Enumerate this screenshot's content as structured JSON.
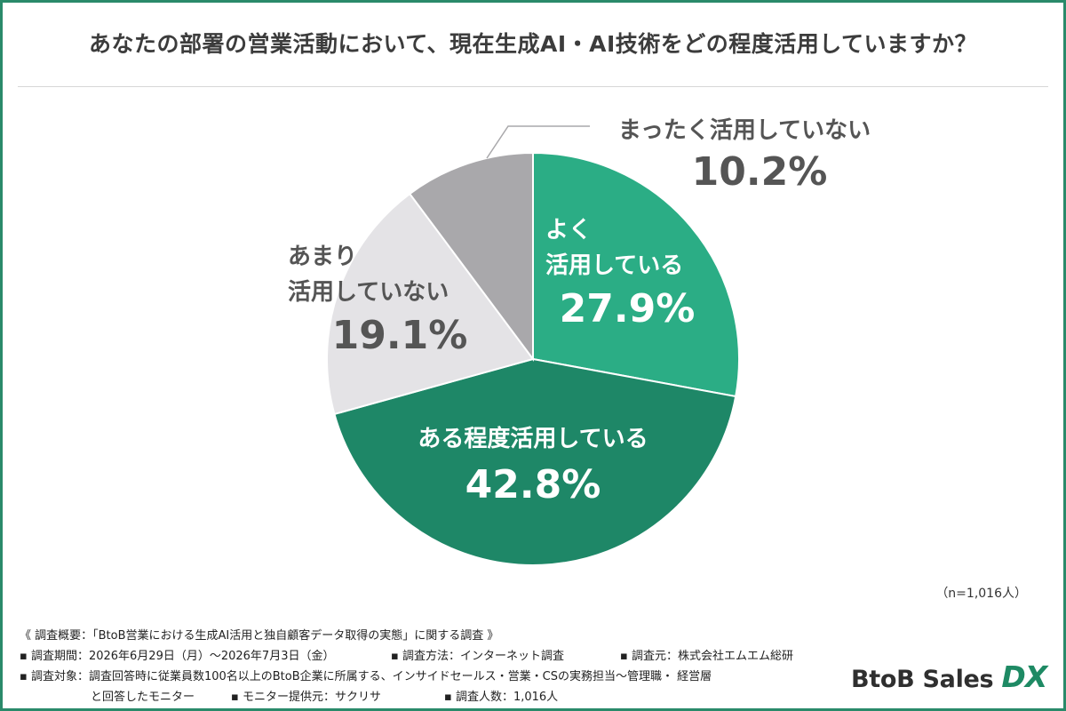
{
  "title": "あなたの部署の営業活動において、現在生成AI・AI技術をどの程度活用していますか？",
  "chart_data": {
    "type": "pie",
    "title": "あなたの部署の営業活動において、現在生成AI・AI技術をどの程度活用していますか？",
    "slices": [
      {
        "label_lines": [
          "よく",
          "活用している"
        ],
        "value": 27.9,
        "value_label": "27.9%",
        "color": "#2bad85",
        "text_color": "#ffffff"
      },
      {
        "label_lines": [
          "ある程度活用している"
        ],
        "value": 42.8,
        "value_label": "42.8%",
        "color": "#1e8767",
        "text_color": "#ffffff"
      },
      {
        "label_lines": [
          "あまり",
          "活用していない"
        ],
        "value": 19.1,
        "value_label": "19.1%",
        "color": "#e4e3e6",
        "text_color": "#555555"
      },
      {
        "label_lines": [
          "まったく活用していない"
        ],
        "value": 10.2,
        "value_label": "10.2%",
        "color": "#a9a8ab",
        "text_color": "#555555"
      }
    ],
    "start": "12 o'clock",
    "direction": "clockwise"
  },
  "sample_note": "（n=1,016人）",
  "survey": {
    "overview": "《 調査概要：「BtoB営業における生成AI活用と独自顧客データ取得の実態」に関する調査 》",
    "period": "▪ 調査期間：2026年6月29日（月）〜2026年7月3日（金）",
    "method": "▪ 調査方法：インターネット調査",
    "source": "▪ 調査元：株式会社エムエム総研",
    "target": "▪ 調査対象：調査回答時に従業員数100名以上のBtoB企業に所属する、インサイドセールス・営業・CSの実務担当〜管理職・ 経営層",
    "target_cont": "と回答したモニター",
    "provider": "▪ モニター提供元：サクリサ",
    "respondents": "▪ 調査人数：1,016人"
  },
  "brand": {
    "main": "BtoB Sales ",
    "accent": "DX"
  }
}
